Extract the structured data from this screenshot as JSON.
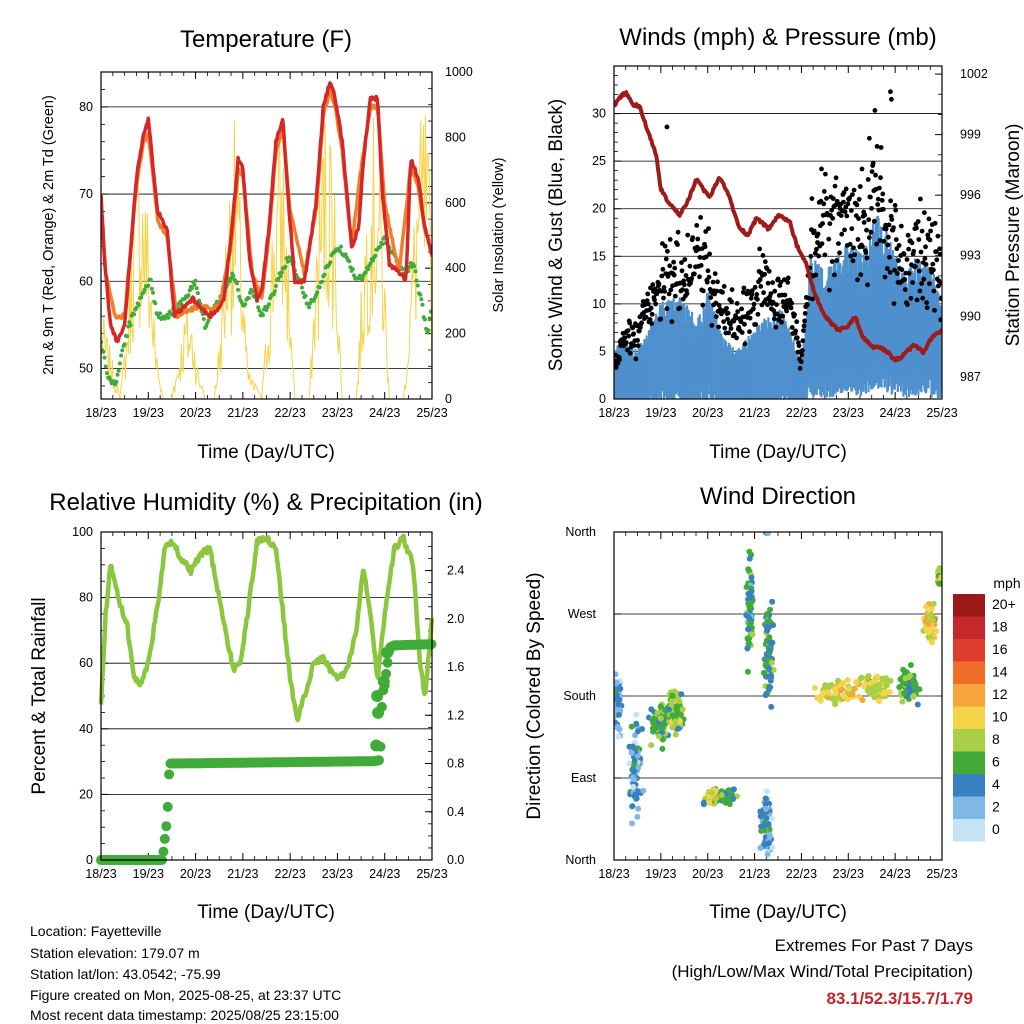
{
  "chart_data": [
    {
      "id": "temp",
      "type": "line",
      "title": "Temperature (F)",
      "xlabel": "Time (Day/UTC)",
      "ylabel": "2m & 9m T (Red, Orange) & 2m Td (Green)",
      "y2label": "Solar Insolation (Yellow)",
      "x_ticks": [
        "18/23",
        "19/23",
        "20/23",
        "21/23",
        "22/23",
        "23/23",
        "24/23",
        "25/23"
      ],
      "ylim": [
        46.5,
        84
      ],
      "y_ticks": [
        50,
        60,
        70,
        80
      ],
      "y2lim": [
        0,
        1000
      ],
      "y2_ticks": [
        0,
        200,
        400,
        600,
        800,
        1000
      ],
      "grid": true,
      "colors": {
        "t2m": "#d62728",
        "t9m": "#f07f2a",
        "td": "#41ab3a",
        "solar": "#f5d44a"
      },
      "series": [
        {
          "key": "t2m",
          "x": [
            0,
            0.08,
            0.2,
            0.35,
            0.5,
            0.75,
            0.9,
            1.0,
            1.2,
            1.4,
            1.55,
            1.75,
            1.95,
            2.1,
            2.3,
            2.5,
            2.6,
            2.75,
            2.9,
            3.0,
            3.15,
            3.3,
            3.4,
            3.55,
            3.7,
            3.85,
            3.95,
            4.1,
            4.3,
            4.55,
            4.7,
            4.85,
            4.95,
            5.1,
            5.3,
            5.45,
            5.55,
            5.7,
            5.85,
            5.95,
            6.1,
            6.3,
            6.45,
            6.55,
            6.7,
            6.85,
            6.95,
            7.0
          ],
          "values": [
            70,
            62,
            55,
            53,
            55,
            72,
            77,
            78.5,
            68,
            66,
            56,
            57,
            58,
            57,
            56,
            57,
            58,
            65,
            74,
            73,
            62,
            58,
            59,
            66,
            76,
            78.5,
            70,
            60,
            60,
            69,
            80,
            83,
            81,
            76,
            64,
            66,
            74,
            81,
            81,
            70,
            62,
            61,
            60,
            74,
            72,
            66,
            64,
            63
          ]
        },
        {
          "key": "t9m",
          "x": [
            0,
            0.1,
            0.3,
            0.5,
            0.75,
            0.9,
            1.0,
            1.2,
            1.4,
            1.6,
            2.0,
            2.5,
            2.75,
            2.9,
            3.0,
            3.2,
            3.4,
            3.55,
            3.7,
            3.85,
            4.0,
            4.3,
            4.55,
            4.7,
            4.85,
            4.95,
            5.1,
            5.3,
            5.5,
            5.7,
            5.85,
            6.0,
            6.3,
            6.55,
            6.7,
            6.85,
            7.0
          ],
          "values": [
            69,
            61,
            56,
            56,
            71,
            76,
            77,
            67,
            65,
            56,
            57,
            57,
            64,
            73,
            72,
            61,
            58,
            65,
            75,
            77.5,
            68,
            61,
            68,
            79,
            82,
            80,
            75,
            64,
            73,
            80,
            80,
            69,
            61,
            73,
            71,
            66,
            63
          ]
        },
        {
          "key": "td",
          "x": [
            0,
            0.15,
            0.3,
            0.45,
            0.6,
            0.75,
            0.9,
            1.05,
            1.2,
            1.4,
            1.6,
            1.8,
            2.0,
            2.2,
            2.4,
            2.6,
            2.8,
            3.0,
            3.2,
            3.4,
            3.6,
            3.8,
            4.0,
            4.2,
            4.4,
            4.6,
            4.8,
            5.0,
            5.2,
            5.4,
            5.6,
            5.8,
            6.0,
            6.2,
            6.4,
            6.6,
            6.8,
            6.9,
            7.0
          ],
          "values": [
            53,
            49,
            48,
            52,
            55,
            57,
            59,
            60,
            56,
            56,
            57,
            58,
            60,
            55,
            57,
            59,
            61,
            57,
            59,
            56,
            58,
            61,
            63,
            60,
            57,
            59,
            62,
            64,
            63,
            60,
            61,
            63,
            65,
            63,
            61,
            62,
            57,
            54,
            57
          ]
        },
        {
          "key": "solar",
          "x": [
            0,
            0.4,
            0.55,
            0.7,
            0.85,
            1.0,
            1.15,
            1.3,
            1.5,
            1.65,
            1.8,
            1.95,
            2.05,
            2.2,
            2.4,
            2.55,
            2.7,
            2.85,
            2.95,
            3.1,
            3.4,
            3.55,
            3.7,
            3.85,
            3.95,
            4.1,
            4.4,
            4.55,
            4.7,
            4.85,
            4.95,
            5.1,
            5.4,
            5.55,
            5.7,
            5.85,
            5.95,
            6.1,
            6.4,
            6.55,
            6.7,
            6.85,
            6.95,
            7.0
          ],
          "values": [
            300,
            0,
            250,
            700,
            800,
            600,
            200,
            0,
            0,
            150,
            300,
            250,
            100,
            0,
            0,
            300,
            700,
            900,
            600,
            100,
            0,
            350,
            800,
            850,
            500,
            0,
            0,
            500,
            900,
            950,
            700,
            0,
            0,
            500,
            850,
            900,
            600,
            0,
            0,
            400,
            800,
            950,
            700,
            200
          ]
        }
      ]
    },
    {
      "id": "wind",
      "type": "scatter",
      "title": "Winds (mph) & Pressure (mb)",
      "xlabel": "Time (Day/UTC)",
      "ylabel": "Sonic Wind & Gust (Blue, Black)",
      "y2label": "Station Pressure (Maroon)",
      "x_ticks": [
        "18/23",
        "19/23",
        "20/23",
        "21/23",
        "22/23",
        "23/23",
        "24/23",
        "25/23"
      ],
      "ylim": [
        0,
        35
      ],
      "y_ticks": [
        0,
        5,
        10,
        15,
        20,
        25,
        30
      ],
      "y2lim": [
        985.9,
        1002.4
      ],
      "y2_ticks": [
        987,
        990,
        993,
        996,
        999,
        1002
      ],
      "colors": {
        "wind": "#4f90cd",
        "gust": "#000000",
        "pressure": "#9e1b1b"
      },
      "wind": {
        "x": [
          0,
          0.2,
          0.5,
          0.8,
          1.0,
          1.2,
          1.5,
          1.8,
          2.0,
          2.3,
          2.6,
          2.9,
          3.2,
          3.5,
          3.8,
          4.0,
          4.2,
          4.5,
          4.8,
          5.0,
          5.3,
          5.6,
          5.9,
          6.2,
          6.5,
          6.8,
          7.0
        ],
        "values": [
          3,
          4,
          3,
          5,
          6,
          7,
          6,
          5,
          7,
          4,
          3,
          4,
          5,
          6,
          4,
          2,
          9,
          8,
          9,
          10,
          9,
          12,
          10,
          8,
          9,
          8,
          6
        ]
      },
      "gust": {
        "x": [
          0,
          0.2,
          0.5,
          0.8,
          1.0,
          1.2,
          1.5,
          1.8,
          2.0,
          2.3,
          2.6,
          2.9,
          3.2,
          3.5,
          3.8,
          4.0,
          4.2,
          4.5,
          4.8,
          5.0,
          5.3,
          5.6,
          5.9,
          6.2,
          6.5,
          6.8,
          7.0
        ],
        "values": [
          3,
          6,
          7,
          10,
          12,
          13,
          12,
          16,
          14,
          9,
          8,
          10,
          12,
          11,
          9,
          4,
          16,
          19,
          17,
          20,
          18,
          22,
          17,
          13,
          16,
          15,
          12
        ]
      },
      "gust_outliers": {
        "x": [
          1.13,
          5.45,
          5.9,
          5.92
        ],
        "values": [
          28.6,
          27.4,
          32.3,
          31.5
        ]
      },
      "pressure": {
        "x": [
          0,
          0.1,
          0.25,
          0.4,
          0.55,
          0.7,
          0.9,
          1.0,
          1.2,
          1.4,
          1.6,
          1.75,
          1.9,
          2.05,
          2.25,
          2.45,
          2.65,
          2.85,
          3.05,
          3.3,
          3.5,
          3.75,
          3.9,
          4.1,
          4.3,
          4.5,
          4.65,
          4.8,
          5.0,
          5.15,
          5.3,
          5.5,
          5.7,
          5.85,
          6.0,
          6.2,
          6.4,
          6.6,
          6.8,
          7.0
        ],
        "values": [
          1000.4,
          1000.8,
          1001.1,
          1000.5,
          1000.4,
          999.3,
          998.0,
          996.3,
          995.5,
          995.0,
          995.8,
          996.8,
          996.3,
          995.9,
          996.9,
          996.0,
          994.5,
          994.0,
          994.9,
          994.3,
          995.0,
          994.7,
          993.5,
          992.6,
          991.0,
          990.0,
          989.6,
          989.3,
          989.5,
          990.0,
          989.0,
          988.5,
          988.4,
          988.2,
          987.8,
          988.1,
          988.6,
          988.2,
          989.0,
          989.3
        ]
      }
    },
    {
      "id": "rh",
      "type": "line",
      "title": "Relative Humidity (%) & Precipitation (in)",
      "xlabel": "Time (Day/UTC)",
      "ylabel": "Percent & Total Rainfall",
      "x_ticks": [
        "18/23",
        "19/23",
        "20/23",
        "21/23",
        "22/23",
        "23/23",
        "24/23",
        "25/23"
      ],
      "ylim": [
        0,
        100
      ],
      "y_ticks": [
        0,
        20,
        40,
        60,
        80,
        100
      ],
      "y2lim": [
        0,
        2.72
      ],
      "y2_ticks": [
        "0.0",
        "0.4",
        "0.8",
        "1.2",
        "1.6",
        "2.0",
        "2.4"
      ],
      "colors": {
        "rh": "#8cc63f",
        "precip": "#41ab3a"
      },
      "series": [
        {
          "key": "rh",
          "x": [
            0,
            0.1,
            0.2,
            0.3,
            0.4,
            0.55,
            0.7,
            0.85,
            1.0,
            1.2,
            1.35,
            1.5,
            1.7,
            1.9,
            2.1,
            2.3,
            2.5,
            2.7,
            2.8,
            2.95,
            3.1,
            3.3,
            3.5,
            3.7,
            3.85,
            4.0,
            4.15,
            4.3,
            4.5,
            4.7,
            4.85,
            5.0,
            5.2,
            5.4,
            5.55,
            5.7,
            5.85,
            6.0,
            6.2,
            6.4,
            6.6,
            6.75,
            6.85,
            7.0
          ],
          "values": [
            48,
            75,
            90,
            85,
            78,
            72,
            55,
            54,
            60,
            78,
            95,
            97,
            92,
            88,
            93,
            95,
            80,
            65,
            58,
            60,
            75,
            97,
            98,
            95,
            75,
            55,
            43,
            50,
            60,
            62,
            58,
            55,
            58,
            70,
            90,
            75,
            55,
            75,
            95,
            98,
            90,
            60,
            50,
            73
          ]
        },
        {
          "key": "precip",
          "x": [
            0,
            1.3,
            1.4,
            1.45,
            1.5,
            5.8,
            5.9,
            5.95,
            6.0,
            6.1,
            6.2,
            7.0
          ],
          "values": [
            0,
            0,
            0.35,
            0.8,
            0.8,
            0.82,
            0.83,
            1.38,
            1.45,
            1.76,
            1.78,
            1.79
          ]
        }
      ]
    },
    {
      "id": "dir",
      "type": "scatter",
      "title": "Wind Direction",
      "xlabel": "Time (Day/UTC)",
      "ylabel": "Direction (Colored By Speed)",
      "x_ticks": [
        "18/23",
        "19/23",
        "20/23",
        "21/23",
        "22/23",
        "23/23",
        "24/23",
        "25/23"
      ],
      "y_ticks": [
        "North",
        "East",
        "South",
        "West",
        "North"
      ],
      "legend": {
        "unit": "mph",
        "labels": [
          "20+",
          "18",
          "16",
          "14",
          "12",
          "10",
          "8",
          "6",
          "4",
          "2",
          "0"
        ],
        "colors": [
          "#99191b",
          "#c4282b",
          "#de3d2d",
          "#f06e2a",
          "#f6a53d",
          "#f5d44a",
          "#a8cf45",
          "#41ab3a",
          "#3880c2",
          "#7fb8e4",
          "#c4e4f6"
        ]
      },
      "clusters": [
        {
          "x": 0.05,
          "y": 170,
          "sx": 0.1,
          "sy": 40,
          "spd": 3
        },
        {
          "x": 0.45,
          "y": 100,
          "sx": 0.15,
          "sy": 50,
          "spd": 3
        },
        {
          "x": 1.0,
          "y": 150,
          "sx": 0.25,
          "sy": 25,
          "spd": 6
        },
        {
          "x": 1.3,
          "y": 160,
          "sx": 0.15,
          "sy": 30,
          "spd": 7
        },
        {
          "x": 2.3,
          "y": 70,
          "sx": 0.35,
          "sy": 10,
          "spd": 6
        },
        {
          "x": 2.1,
          "y": 70,
          "sx": 0.1,
          "sy": 8,
          "spd": 9
        },
        {
          "x": 2.9,
          "y": 270,
          "sx": 0.08,
          "sy": 60,
          "spd": 5
        },
        {
          "x": 3.3,
          "y": 230,
          "sx": 0.1,
          "sy": 60,
          "spd": 5
        },
        {
          "x": 3.25,
          "y": 40,
          "sx": 0.12,
          "sy": 40,
          "spd": 3
        },
        {
          "x": 4.8,
          "y": 185,
          "sx": 0.5,
          "sy": 12,
          "spd": 10
        },
        {
          "x": 5.6,
          "y": 190,
          "sx": 0.35,
          "sy": 15,
          "spd": 9
        },
        {
          "x": 6.3,
          "y": 190,
          "sx": 0.2,
          "sy": 20,
          "spd": 6
        },
        {
          "x": 6.75,
          "y": 260,
          "sx": 0.12,
          "sy": 20,
          "spd": 10
        },
        {
          "x": 6.95,
          "y": 310,
          "sx": 0.05,
          "sy": 10,
          "spd": 9
        }
      ]
    }
  ],
  "info": {
    "location": "Location: Fayetteville",
    "elevation": "Station elevation: 179.07 m",
    "latlon": "Station lat/lon: 43.0542; -75.99",
    "created": "Figure created on Mon, 2025-08-25, at 23:37 UTC",
    "timestamp": "Most recent data timestamp: 2025/08/25 23:15:00"
  },
  "extremes": {
    "line1": "Extremes For Past 7 Days",
    "line2": "(High/Low/Max Wind/Total Precipitation)",
    "values": "83.1/52.3/15.7/1.79"
  }
}
